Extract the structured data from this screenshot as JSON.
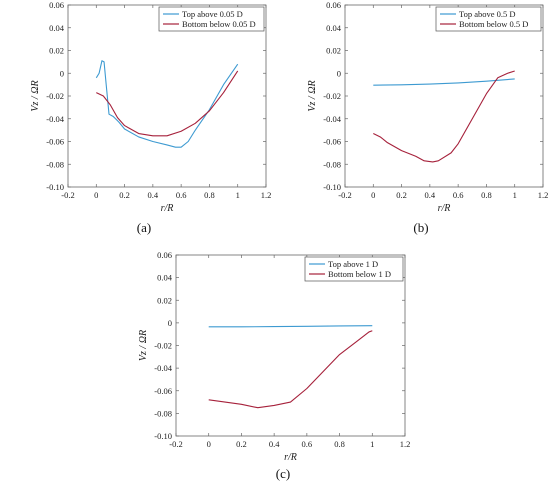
{
  "chart_data": [
    {
      "type": "line",
      "caption": "(a)",
      "xlabel": "r/R",
      "ylabel": "Vz / ΩR",
      "xlim": [
        -0.2,
        1.2
      ],
      "ylim": [
        -0.1,
        0.06
      ],
      "xticks": [
        "-0.2",
        "0",
        "0.2",
        "0.4",
        "0.6",
        "0.8",
        "1",
        "1.2"
      ],
      "yticks": [
        "0.06",
        "0.04",
        "0.02",
        "0",
        "-0.02",
        "-0.04",
        "-0.06",
        "-0.08",
        "-0.10"
      ],
      "legend_position": "top-right",
      "series": [
        {
          "name": "Top above 0.05 D",
          "color": "#3d9ad1",
          "x": [
            0.0,
            0.02,
            0.04,
            0.055,
            0.07,
            0.09,
            0.12,
            0.16,
            0.2,
            0.3,
            0.4,
            0.5,
            0.56,
            0.6,
            0.65,
            0.7,
            0.8,
            0.9,
            1.0
          ],
          "y": [
            -0.004,
            0.0,
            0.011,
            0.01,
            -0.01,
            -0.036,
            -0.038,
            -0.043,
            -0.049,
            -0.056,
            -0.06,
            -0.063,
            -0.065,
            -0.065,
            -0.06,
            -0.05,
            -0.032,
            -0.01,
            0.008
          ]
        },
        {
          "name": "Bottom below 0.05 D",
          "color": "#a6213b",
          "x": [
            0.0,
            0.05,
            0.1,
            0.15,
            0.2,
            0.3,
            0.4,
            0.5,
            0.6,
            0.7,
            0.8,
            0.9,
            1.0
          ],
          "y": [
            -0.017,
            -0.02,
            -0.028,
            -0.039,
            -0.046,
            -0.053,
            -0.055,
            -0.055,
            -0.051,
            -0.044,
            -0.033,
            -0.017,
            0.002
          ]
        }
      ]
    },
    {
      "type": "line",
      "caption": "(b)",
      "xlabel": "r/R",
      "ylabel": "Vz / ΩR",
      "xlim": [
        -0.2,
        1.2
      ],
      "ylim": [
        -0.1,
        0.06
      ],
      "xticks": [
        "-0.2",
        "0",
        "0.2",
        "0.4",
        "0.6",
        "0.8",
        "1",
        "1.2"
      ],
      "yticks": [
        "0.06",
        "0.04",
        "0.02",
        "0",
        "-0.02",
        "-0.04",
        "-0.06",
        "-0.08",
        "-0.10"
      ],
      "legend_position": "top-right",
      "series": [
        {
          "name": "Top above 0.5 D",
          "color": "#3d9ad1",
          "x": [
            0.0,
            0.2,
            0.4,
            0.6,
            0.8,
            1.0
          ],
          "y": [
            -0.0105,
            -0.0102,
            -0.0095,
            -0.0085,
            -0.007,
            -0.005
          ]
        },
        {
          "name": "Bottom below 0.5 D",
          "color": "#a6213b",
          "x": [
            0.0,
            0.05,
            0.1,
            0.2,
            0.3,
            0.36,
            0.42,
            0.46,
            0.55,
            0.6,
            0.7,
            0.8,
            0.88,
            0.95,
            1.0
          ],
          "y": [
            -0.053,
            -0.056,
            -0.061,
            -0.068,
            -0.073,
            -0.077,
            -0.078,
            -0.077,
            -0.07,
            -0.062,
            -0.04,
            -0.018,
            -0.004,
            0.0,
            0.002
          ]
        }
      ]
    },
    {
      "type": "line",
      "caption": "(c)",
      "xlabel": "r/R",
      "ylabel": "Vz / ΩR",
      "xlim": [
        -0.2,
        1.2
      ],
      "ylim": [
        -0.1,
        0.06
      ],
      "xticks": [
        "-0.2",
        "0",
        "0.2",
        "0.4",
        "0.6",
        "0.8",
        "1",
        "1.2"
      ],
      "yticks": [
        "0.06",
        "0.04",
        "0.02",
        "0",
        "-0.02",
        "-0.04",
        "-0.06",
        "-0.08",
        "-0.10"
      ],
      "legend_position": "top-right",
      "series": [
        {
          "name": "Top above 1 D",
          "color": "#3d9ad1",
          "x": [
            0.0,
            0.2,
            0.4,
            0.6,
            0.8,
            1.0
          ],
          "y": [
            -0.0035,
            -0.0035,
            -0.0033,
            -0.003,
            -0.0027,
            -0.0025
          ]
        },
        {
          "name": "Bottom below 1 D",
          "color": "#a6213b",
          "x": [
            0.0,
            0.1,
            0.2,
            0.3,
            0.4,
            0.5,
            0.6,
            0.7,
            0.8,
            0.9,
            0.98,
            1.0
          ],
          "y": [
            -0.068,
            -0.07,
            -0.072,
            -0.075,
            -0.073,
            -0.07,
            -0.058,
            -0.043,
            -0.028,
            -0.017,
            -0.008,
            -0.007
          ]
        }
      ]
    }
  ]
}
